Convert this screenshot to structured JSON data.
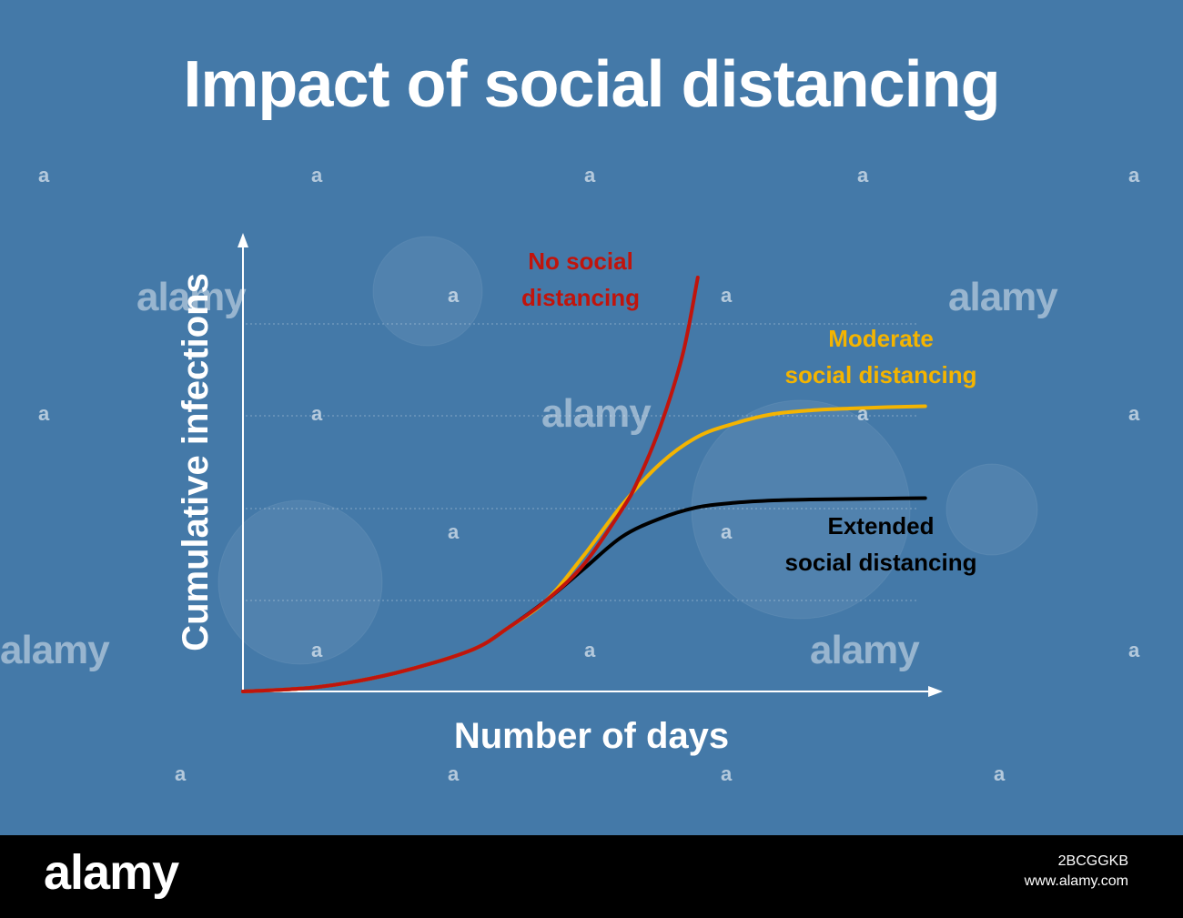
{
  "chart_data": {
    "type": "line",
    "title": "Impact of social distancing",
    "xlabel": "Number of days",
    "ylabel": "Cumulative infections",
    "xlim": [
      0,
      100
    ],
    "ylim": [
      0,
      100
    ],
    "grid": true,
    "series": [
      {
        "name": "No social distancing",
        "color": "#c0140c",
        "x": [
          0,
          10,
          20,
          30,
          35,
          40,
          45,
          50,
          52,
          55,
          58,
          60
        ],
        "y": [
          0,
          1,
          4,
          9,
          14,
          20,
          28,
          40,
          46,
          58,
          74,
          91
        ]
      },
      {
        "name": "Moderate social distancing",
        "color": "#f4b400",
        "x": [
          0,
          10,
          20,
          30,
          35,
          40,
          45,
          50,
          55,
          60,
          65,
          70,
          75,
          80,
          85,
          90
        ],
        "y": [
          0,
          1,
          4,
          9,
          14,
          20,
          30,
          41,
          50,
          56,
          59,
          61,
          61.8,
          62.2,
          62.5,
          62.7
        ]
      },
      {
        "name": "Extended social distancing",
        "color": "#000000",
        "x": [
          0,
          10,
          20,
          30,
          35,
          40,
          45,
          50,
          55,
          60,
          65,
          70,
          75,
          80,
          85,
          90
        ],
        "y": [
          0,
          1,
          4,
          9,
          14,
          20,
          27,
          34,
          38,
          40.5,
          41.5,
          42,
          42.2,
          42.3,
          42.4,
          42.5
        ]
      }
    ]
  },
  "labels": {
    "no_line1": "No social",
    "no_line2": "distancing",
    "mod_line1": "Moderate",
    "mod_line2": "social distancing",
    "ext_line1": "Extended",
    "ext_line2": "social distancing"
  },
  "watermark": {
    "brand": "alamy",
    "mark": "a"
  },
  "footer": {
    "logo": "alamy",
    "image_id": "2BCGGKB",
    "site": "www.alamy.com"
  }
}
